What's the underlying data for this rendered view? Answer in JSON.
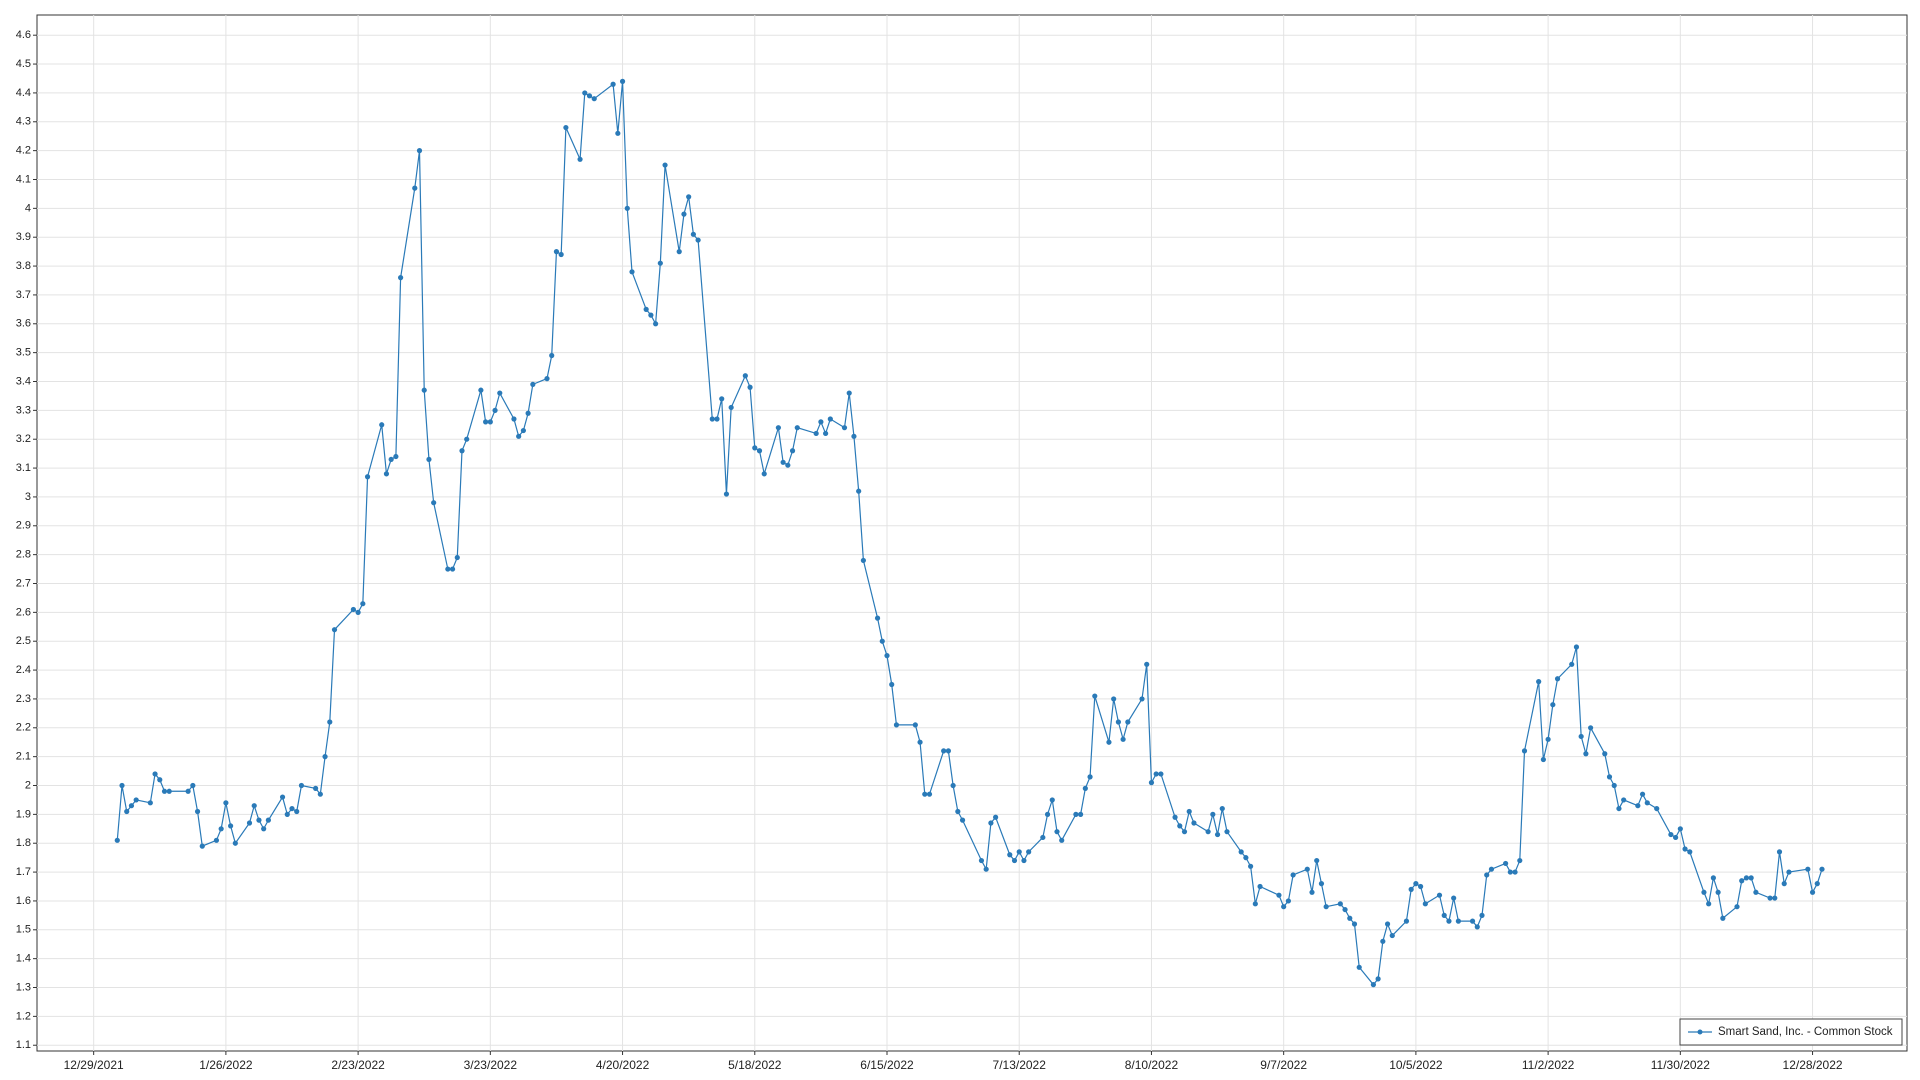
{
  "chart_data": {
    "type": "line",
    "grid": true,
    "legend": "lower right",
    "xlim": [
      "2021-12-17",
      "2023-01-17"
    ],
    "xticks": [
      {
        "value": "2021-12-29",
        "label": "12/29/2021"
      },
      {
        "value": "2022-01-26",
        "label": "1/26/2022"
      },
      {
        "value": "2022-02-23",
        "label": "2/23/2022"
      },
      {
        "value": "2022-03-23",
        "label": "3/23/2022"
      },
      {
        "value": "2022-04-20",
        "label": "4/20/2022"
      },
      {
        "value": "2022-05-18",
        "label": "5/18/2022"
      },
      {
        "value": "2022-06-15",
        "label": "6/15/2022"
      },
      {
        "value": "2022-07-13",
        "label": "7/13/2022"
      },
      {
        "value": "2022-08-10",
        "label": "8/10/2022"
      },
      {
        "value": "2022-09-07",
        "label": "9/7/2022"
      },
      {
        "value": "2022-10-05",
        "label": "10/5/2022"
      },
      {
        "value": "2022-11-02",
        "label": "11/2/2022"
      },
      {
        "value": "2022-11-30",
        "label": "11/30/2022"
      },
      {
        "value": "2022-12-28",
        "label": "12/28/2022"
      }
    ],
    "ylim": [
      1.08,
      4.67
    ],
    "yticks": [
      1.1,
      1.2,
      1.3,
      1.4,
      1.5,
      1.6,
      1.7,
      1.8,
      1.9,
      2,
      2.1,
      2.2,
      2.3,
      2.4,
      2.5,
      2.6,
      2.7,
      2.8,
      2.9,
      3,
      3.1,
      3.2,
      3.3,
      3.4,
      3.5,
      3.6,
      3.7,
      3.8,
      3.9,
      4,
      4.1,
      4.2,
      4.3,
      4.4,
      4.5,
      4.6
    ],
    "x": [
      "2022-01-03",
      "2022-01-04",
      "2022-01-05",
      "2022-01-06",
      "2022-01-07",
      "2022-01-10",
      "2022-01-11",
      "2022-01-12",
      "2022-01-13",
      "2022-01-14",
      "2022-01-18",
      "2022-01-19",
      "2022-01-20",
      "2022-01-21",
      "2022-01-24",
      "2022-01-25",
      "2022-01-26",
      "2022-01-27",
      "2022-01-28",
      "2022-01-31",
      "2022-02-01",
      "2022-02-02",
      "2022-02-03",
      "2022-02-04",
      "2022-02-07",
      "2022-02-08",
      "2022-02-09",
      "2022-02-10",
      "2022-02-11",
      "2022-02-14",
      "2022-02-15",
      "2022-02-16",
      "2022-02-17",
      "2022-02-18",
      "2022-02-22",
      "2022-02-23",
      "2022-02-24",
      "2022-02-25",
      "2022-02-28",
      "2022-03-01",
      "2022-03-02",
      "2022-03-03",
      "2022-03-04",
      "2022-03-07",
      "2022-03-08",
      "2022-03-09",
      "2022-03-10",
      "2022-03-11",
      "2022-03-14",
      "2022-03-15",
      "2022-03-16",
      "2022-03-17",
      "2022-03-18",
      "2022-03-21",
      "2022-03-22",
      "2022-03-23",
      "2022-03-24",
      "2022-03-25",
      "2022-03-28",
      "2022-03-29",
      "2022-03-30",
      "2022-03-31",
      "2022-04-01",
      "2022-04-04",
      "2022-04-05",
      "2022-04-06",
      "2022-04-07",
      "2022-04-08",
      "2022-04-11",
      "2022-04-12",
      "2022-04-13",
      "2022-04-14",
      "2022-04-18",
      "2022-04-19",
      "2022-04-20",
      "2022-04-21",
      "2022-04-22",
      "2022-04-25",
      "2022-04-26",
      "2022-04-27",
      "2022-04-28",
      "2022-04-29",
      "2022-05-02",
      "2022-05-03",
      "2022-05-04",
      "2022-05-05",
      "2022-05-06",
      "2022-05-09",
      "2022-05-10",
      "2022-05-11",
      "2022-05-12",
      "2022-05-13",
      "2022-05-16",
      "2022-05-17",
      "2022-05-18",
      "2022-05-19",
      "2022-05-20",
      "2022-05-23",
      "2022-05-24",
      "2022-05-25",
      "2022-05-26",
      "2022-05-27",
      "2022-05-31",
      "2022-06-01",
      "2022-06-02",
      "2022-06-03",
      "2022-06-06",
      "2022-06-07",
      "2022-06-08",
      "2022-06-09",
      "2022-06-10",
      "2022-06-13",
      "2022-06-14",
      "2022-06-15",
      "2022-06-16",
      "2022-06-17",
      "2022-06-21",
      "2022-06-22",
      "2022-06-23",
      "2022-06-24",
      "2022-06-27",
      "2022-06-28",
      "2022-06-29",
      "2022-06-30",
      "2022-07-01",
      "2022-07-05",
      "2022-07-06",
      "2022-07-07",
      "2022-07-08",
      "2022-07-11",
      "2022-07-12",
      "2022-07-13",
      "2022-07-14",
      "2022-07-15",
      "2022-07-18",
      "2022-07-19",
      "2022-07-20",
      "2022-07-21",
      "2022-07-22",
      "2022-07-25",
      "2022-07-26",
      "2022-07-27",
      "2022-07-28",
      "2022-07-29",
      "2022-08-01",
      "2022-08-02",
      "2022-08-03",
      "2022-08-04",
      "2022-08-05",
      "2022-08-08",
      "2022-08-09",
      "2022-08-10",
      "2022-08-11",
      "2022-08-12",
      "2022-08-15",
      "2022-08-16",
      "2022-08-17",
      "2022-08-18",
      "2022-08-19",
      "2022-08-22",
      "2022-08-23",
      "2022-08-24",
      "2022-08-25",
      "2022-08-26",
      "2022-08-29",
      "2022-08-30",
      "2022-08-31",
      "2022-09-01",
      "2022-09-02",
      "2022-09-06",
      "2022-09-07",
      "2022-09-08",
      "2022-09-09",
      "2022-09-12",
      "2022-09-13",
      "2022-09-14",
      "2022-09-15",
      "2022-09-16",
      "2022-09-19",
      "2022-09-20",
      "2022-09-21",
      "2022-09-22",
      "2022-09-23",
      "2022-09-26",
      "2022-09-27",
      "2022-09-28",
      "2022-09-29",
      "2022-09-30",
      "2022-10-03",
      "2022-10-04",
      "2022-10-05",
      "2022-10-06",
      "2022-10-07",
      "2022-10-10",
      "2022-10-11",
      "2022-10-12",
      "2022-10-13",
      "2022-10-14",
      "2022-10-17",
      "2022-10-18",
      "2022-10-19",
      "2022-10-20",
      "2022-10-21",
      "2022-10-24",
      "2022-10-25",
      "2022-10-26",
      "2022-10-27",
      "2022-10-28",
      "2022-10-31",
      "2022-11-01",
      "2022-11-02",
      "2022-11-03",
      "2022-11-04",
      "2022-11-07",
      "2022-11-08",
      "2022-11-09",
      "2022-11-10",
      "2022-11-11",
      "2022-11-14",
      "2022-11-15",
      "2022-11-16",
      "2022-11-17",
      "2022-11-18",
      "2022-11-21",
      "2022-11-22",
      "2022-11-23",
      "2022-11-25",
      "2022-11-28",
      "2022-11-29",
      "2022-11-30",
      "2022-12-01",
      "2022-12-02",
      "2022-12-05",
      "2022-12-06",
      "2022-12-07",
      "2022-12-08",
      "2022-12-09",
      "2022-12-12",
      "2022-12-13",
      "2022-12-14",
      "2022-12-15",
      "2022-12-16",
      "2022-12-19",
      "2022-12-20",
      "2022-12-21",
      "2022-12-22",
      "2022-12-23",
      "2022-12-27",
      "2022-12-28",
      "2022-12-29",
      "2022-12-30"
    ],
    "series": [
      {
        "name": "Smart Sand, Inc. - Common Stock",
        "color": "#2a7ab8",
        "values": [
          1.81,
          2.0,
          1.91,
          1.93,
          1.95,
          1.94,
          2.04,
          2.02,
          1.98,
          1.98,
          1.98,
          2.0,
          1.91,
          1.79,
          1.81,
          1.85,
          1.94,
          1.86,
          1.8,
          1.87,
          1.93,
          1.88,
          1.85,
          1.88,
          1.96,
          1.9,
          1.92,
          1.91,
          2.0,
          1.99,
          1.97,
          2.1,
          2.22,
          2.54,
          2.61,
          2.6,
          2.63,
          3.07,
          3.25,
          3.08,
          3.13,
          3.14,
          3.76,
          4.07,
          4.2,
          3.37,
          3.13,
          2.98,
          2.75,
          2.75,
          2.79,
          3.16,
          3.2,
          3.37,
          3.26,
          3.26,
          3.3,
          3.36,
          3.27,
          3.21,
          3.23,
          3.29,
          3.39,
          3.41,
          3.49,
          3.85,
          3.84,
          4.28,
          4.17,
          4.4,
          4.39,
          4.38,
          4.43,
          4.26,
          4.44,
          4.0,
          3.78,
          3.65,
          3.63,
          3.6,
          3.81,
          4.15,
          3.85,
          3.98,
          4.04,
          3.91,
          3.89,
          3.27,
          3.27,
          3.34,
          3.01,
          3.31,
          3.42,
          3.38,
          3.17,
          3.16,
          3.08,
          3.24,
          3.12,
          3.11,
          3.16,
          3.24,
          3.22,
          3.26,
          3.22,
          3.27,
          3.24,
          3.36,
          3.21,
          3.02,
          2.78,
          2.58,
          2.5,
          2.45,
          2.35,
          2.21,
          2.21,
          2.15,
          1.97,
          1.97,
          2.12,
          2.12,
          2.0,
          1.91,
          1.88,
          1.74,
          1.71,
          1.87,
          1.89,
          1.76,
          1.74,
          1.77,
          1.74,
          1.77,
          1.82,
          1.9,
          1.95,
          1.84,
          1.81,
          1.9,
          1.9,
          1.99,
          2.03,
          2.31,
          2.15,
          2.3,
          2.22,
          2.16,
          2.22,
          2.3,
          2.42,
          2.01,
          2.04,
          2.04,
          1.89,
          1.86,
          1.84,
          1.91,
          1.87,
          1.84,
          1.9,
          1.83,
          1.92,
          1.84,
          1.77,
          1.75,
          1.72,
          1.59,
          1.65,
          1.62,
          1.58,
          1.6,
          1.69,
          1.71,
          1.63,
          1.74,
          1.66,
          1.58,
          1.59,
          1.57,
          1.54,
          1.52,
          1.37,
          1.31,
          1.33,
          1.46,
          1.52,
          1.48,
          1.53,
          1.64,
          1.66,
          1.65,
          1.59,
          1.62,
          1.55,
          1.53,
          1.61,
          1.53,
          1.53,
          1.51,
          1.55,
          1.69,
          1.71,
          1.73,
          1.7,
          1.7,
          1.74,
          2.12,
          2.36,
          2.09,
          2.16,
          2.28,
          2.37,
          2.42,
          2.48,
          2.17,
          2.11,
          2.2,
          2.11,
          2.03,
          2.0,
          1.92,
          1.95,
          1.93,
          1.97,
          1.94,
          1.92,
          1.83,
          1.82,
          1.85,
          1.78,
          1.77,
          1.63,
          1.59,
          1.68,
          1.63,
          1.54,
          1.58,
          1.67,
          1.68,
          1.68,
          1.63,
          1.61,
          1.61,
          1.77,
          1.66,
          1.7,
          1.71,
          1.63,
          1.66,
          1.71
        ]
      }
    ]
  }
}
